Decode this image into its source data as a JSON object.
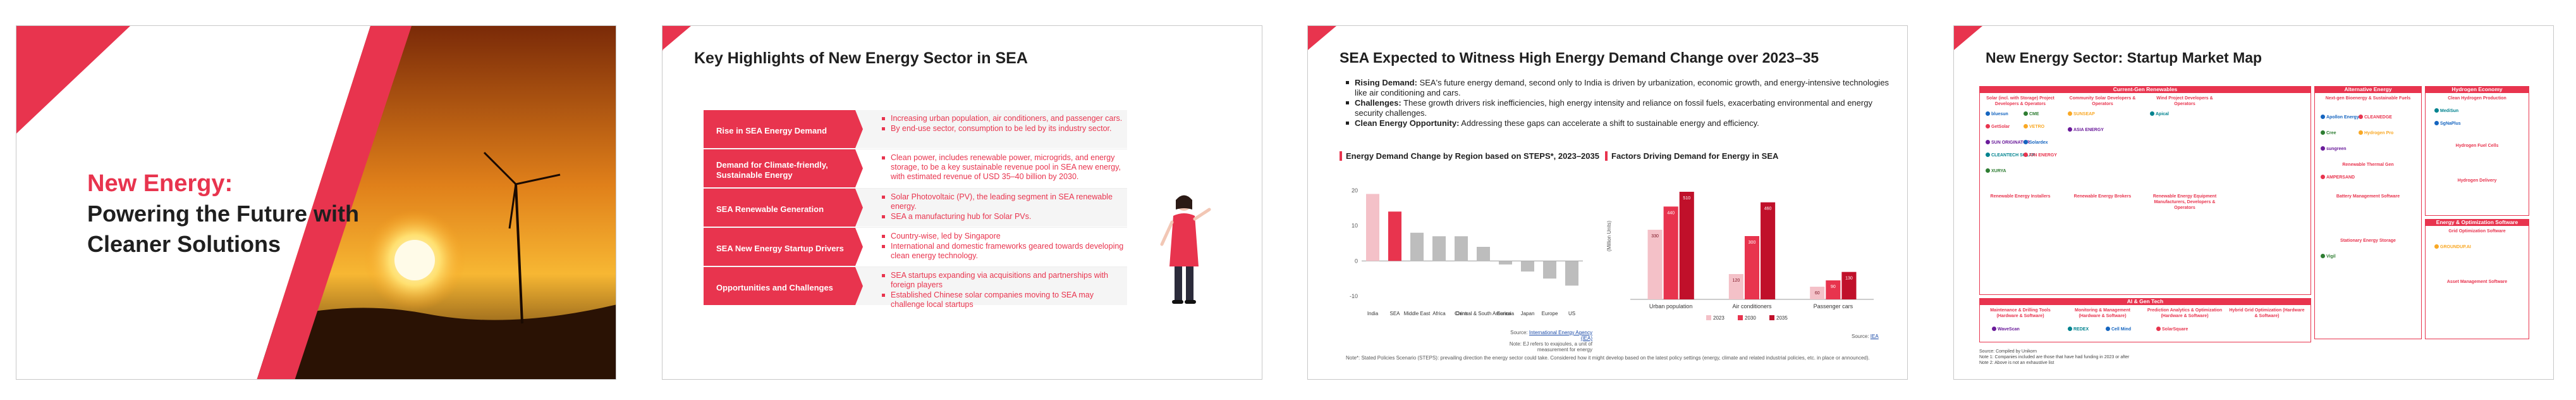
{
  "slide1": {
    "title_line1": "New Energy:",
    "title_line2": "Powering the Future with",
    "title_line3": "Cleaner Solutions",
    "accent": "#e8344e"
  },
  "slide2": {
    "title": "Key Highlights of New Energy Sector in SEA",
    "rows": [
      {
        "label": "Rise in SEA Energy Demand",
        "bullets": [
          "Increasing urban population, air conditioners, and passenger cars.",
          "By end-use sector, consumption to be led by its industry sector."
        ]
      },
      {
        "label": "Demand for Climate-friendly, Sustainable Energy",
        "bullets": [
          "Clean power, includes renewable power, microgrids, and energy storage, to be a key sustainable revenue pool in SEA new energy, with estimated revenue of USD 35–40 billion by 2030."
        ]
      },
      {
        "label": "SEA Renewable Generation",
        "bullets": [
          "Solar Photovoltaic (PV), the leading segment in SEA renewable energy.",
          "SEA a manufacturing hub for Solar PVs."
        ]
      },
      {
        "label": "SEA New Energy Startup Drivers",
        "bullets": [
          "Country-wise, led by Singapore",
          "International and domestic frameworks geared towards developing clean energy technology."
        ]
      },
      {
        "label": "Opportunities and Challenges",
        "bullets": [
          "SEA startups expanding via acquisitions and partnerships with foreign players",
          "Established Chinese solar companies moving to SEA may challenge local startups"
        ]
      }
    ]
  },
  "slide3": {
    "title": "SEA Expected to Witness High Energy Demand Change over 2023–35",
    "bullets": [
      {
        "bold": "Rising Demand:",
        "text": " SEA's future energy demand, second only to India is driven by urbanization, economic growth, and energy-intensive technologies like air conditioning and cars."
      },
      {
        "bold": "Challenges:",
        "text": " These growth drivers risk inefficiencies, high energy intensity and reliance on fossil fuels, exacerbating environmental and energy security challenges."
      },
      {
        "bold": "Clean Energy Opportunity:",
        "text": " Addressing these gaps can accelerate a shift to sustainable energy and efficiency."
      }
    ],
    "chart1_title": "Energy Demand Change by Region based on STEPS*, 2023–2035",
    "chart2_title": "Factors Driving Demand for Energy in SEA",
    "source1_prefix": "Source: ",
    "source1_link": "International Energy Agency (IEA)",
    "source1_note": "Note: EJ refers to exajoules, a unit of measurement for energy",
    "source2_prefix": "Source: ",
    "source2_link": "IEA",
    "footnote": "Note*: Stated Policies Scenario (STEPS): prevailing direction the energy sector could take. Considered how it might develop based on the latest policy settings (energy, climate and related industrial policies, etc. in place or announced)."
  },
  "chart_data": [
    {
      "type": "bar",
      "title": "Energy Demand Change by Region based on STEPS*, 2023–2035",
      "categories": [
        "India",
        "SEA",
        "Middle East",
        "Africa",
        "China",
        "Central & South America",
        "Eurasia",
        "Japan",
        "Europe",
        "US"
      ],
      "values": [
        19,
        14,
        8,
        7,
        7,
        4,
        -1,
        -3,
        -5,
        -7
      ],
      "ylim": [
        -10,
        25
      ],
      "yticks": [
        -10,
        0,
        10,
        20
      ],
      "colors": [
        "#f4c1c8",
        "#e8344e",
        "#bdbdbd",
        "#bdbdbd",
        "#bdbdbd",
        "#bdbdbd",
        "#bdbdbd",
        "#bdbdbd",
        "#bdbdbd",
        "#bdbdbd"
      ]
    },
    {
      "type": "bar",
      "title": "Factors Driving Demand for Energy in SEA",
      "ylabel": "(Million Units)",
      "categories": [
        "Urban population",
        "Air conditioners",
        "Passenger cars"
      ],
      "series": [
        {
          "name": "2023",
          "values": [
            330,
            120,
            60
          ],
          "color": "#f4c1c8"
        },
        {
          "name": "2030",
          "values": [
            440,
            300,
            90
          ],
          "color": "#e8344e"
        },
        {
          "name": "2035",
          "values": [
            510,
            460,
            130
          ],
          "color": "#c0102a"
        }
      ],
      "ylim": [
        0,
        600
      ],
      "data_labels": [
        [
          "330",
          "440",
          "510"
        ],
        [
          "120",
          "300",
          "460"
        ],
        [
          "60",
          "90",
          "130"
        ]
      ]
    }
  ],
  "slide4": {
    "title": "New Energy Sector: Startup Market Map",
    "boxes": {
      "current": "Current-Gen Renewables",
      "alternative": "Alternative Energy",
      "hydrogen": "Hydrogen Economy",
      "ai_tech": "AI & Gen Tech",
      "energy_opt": "Energy & Optimization Software"
    },
    "subs": [
      "Solar (incl. with Storage) Project Developers & Operators",
      "Community Solar Developers & Operators",
      "Wind Project Developers & Operators",
      "Renewable Energy Installers",
      "Renewable Energy Brokers",
      "Renewable Energy Equipment Manufacturers, Developers & Operators",
      "Next-gen Bioenergy & Sustainable Fuels",
      "Renewable Thermal Gen",
      "Battery Management Software",
      "Stationary Energy Storage",
      "Clean Hydrogen Production",
      "Hydrogen Fuel Cells",
      "Hydrogen Delivery",
      "Grid Optimization Software",
      "Asset Management Software",
      "Maintenance & Drilling Tools (Hardware & Software)",
      "Monitoring & Management (Hardware & Software)",
      "Prediction Analytics & Optimization (Hardware & Software)",
      "Hybrid Grid Optimization (Hardware & Software)"
    ],
    "logos": [
      "bluesun",
      "GetSolar",
      "CME",
      "VETRO",
      "SUN ORIGINATOR",
      "CLEANTECH SOLAR",
      "Solardex",
      "ION ENERGY",
      "XURYA",
      "SUNSEAP",
      "ASIA ENERGY",
      "Apical",
      "Apollon Energy",
      "CLEANEDGE",
      "Cree",
      "Hydrogen Pro",
      "sungreen",
      "MediSun",
      "SgNaPlus",
      "AMPERSAND",
      "Vigil",
      "GROUNDUP.AI",
      "WaveScan",
      "REDEX",
      "Cell Mind",
      "SolarSquare"
    ],
    "note1": "Source: Compiled by Unikorn",
    "note2": "Note 1: Companies included are those that have had funding in 2023 or after",
    "note3": "Note 2: Above is not an exhaustive list"
  }
}
